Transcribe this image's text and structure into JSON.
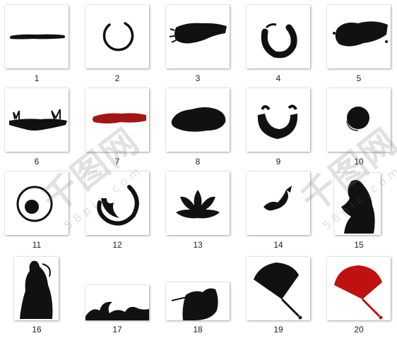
{
  "items": [
    {
      "number": "1",
      "icon": "horizontal-brush-stroke",
      "ink": "#111111"
    },
    {
      "number": "2",
      "icon": "enso-circle-thin",
      "ink": "#111111"
    },
    {
      "number": "3",
      "icon": "dry-brush-smear",
      "ink": "#111111"
    },
    {
      "number": "4",
      "icon": "open-ink-circle",
      "ink": "#111111"
    },
    {
      "number": "5",
      "icon": "ink-splatter-smear",
      "ink": "#111111"
    },
    {
      "number": "6",
      "icon": "grassy-ink-ground",
      "ink": "#111111"
    },
    {
      "number": "7",
      "icon": "red-brush-stroke",
      "ink": "#a31515"
    },
    {
      "number": "8",
      "icon": "ink-cloud-blot",
      "ink": "#111111"
    },
    {
      "number": "9",
      "icon": "ink-bowl-arc",
      "ink": "#111111"
    },
    {
      "number": "10",
      "icon": "ink-ball",
      "ink": "#111111"
    },
    {
      "number": "11",
      "icon": "ink-circle-with-ball",
      "ink": "#111111"
    },
    {
      "number": "12",
      "icon": "swirl-ink-circle",
      "ink": "#111111"
    },
    {
      "number": "13",
      "icon": "lotus-silhouette",
      "ink": "#111111"
    },
    {
      "number": "14",
      "icon": "koi-fish-silhouette",
      "ink": "#111111"
    },
    {
      "number": "15",
      "icon": "figure-silhouette",
      "ink": "#111111"
    },
    {
      "number": "16",
      "icon": "robed-figure-silhouette",
      "ink": "#111111"
    },
    {
      "number": "17",
      "icon": "wave-silhouette",
      "ink": "#111111"
    },
    {
      "number": "18",
      "icon": "warrior-silhouette",
      "ink": "#111111"
    },
    {
      "number": "19",
      "icon": "folding-fan-black",
      "ink": "#111111"
    },
    {
      "number": "20",
      "icon": "folding-fan-red",
      "ink": "#c01010"
    }
  ],
  "watermarks": [
    {
      "main": "千图网",
      "sub": "58pic.com"
    },
    {
      "main": "千图网",
      "sub": "58pic.com"
    }
  ]
}
